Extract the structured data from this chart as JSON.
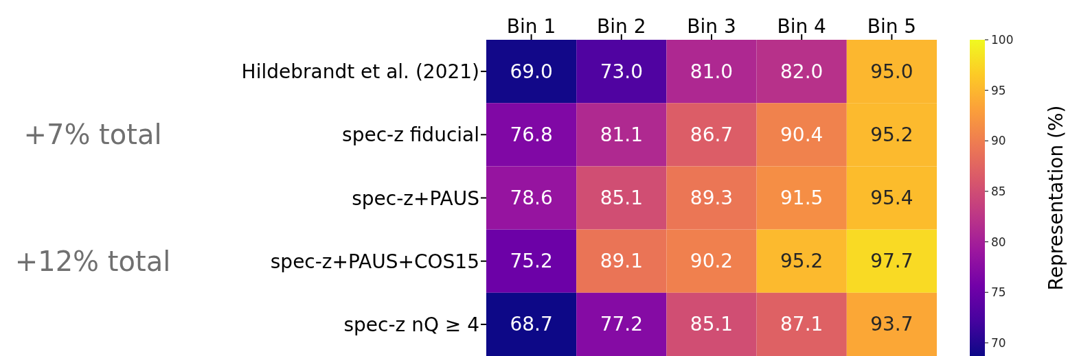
{
  "chart_data": {
    "type": "heatmap",
    "categories": [
      "Bin 1",
      "Bin 2",
      "Bin 3",
      "Bin 4",
      "Bin 5"
    ],
    "y_categories": [
      "Hildebrandt et al. (2021)",
      "spec-z fiducial",
      "spec-z+PAUS",
      "spec-z+PAUS+COS15",
      "spec-z nQ ≥ 4"
    ],
    "cells": [
      [
        69.0,
        73.0,
        81.0,
        82.0,
        95.0
      ],
      [
        76.8,
        81.1,
        86.7,
        90.4,
        95.2
      ],
      [
        78.6,
        85.1,
        89.3,
        91.5,
        95.4
      ],
      [
        75.2,
        89.1,
        90.2,
        95.2,
        97.7
      ],
      [
        68.7,
        77.2,
        85.1,
        87.1,
        93.7
      ]
    ],
    "cell_labels": [
      [
        "69.0",
        "73.0",
        "81.0",
        "82.0",
        "95.0"
      ],
      [
        "76.8",
        "81.1",
        "86.7",
        "90.4",
        "95.2"
      ],
      [
        "78.6",
        "85.1",
        "89.3",
        "91.5",
        "95.4"
      ],
      [
        "75.2",
        "89.1",
        "90.2",
        "95.2",
        "97.7"
      ],
      [
        "68.7",
        "77.2",
        "85.1",
        "87.1",
        "93.7"
      ]
    ],
    "clabel": "Representation (%)",
    "clim": [
      68.7,
      100
    ],
    "cticks": [
      70,
      75,
      80,
      85,
      90,
      95,
      100
    ],
    "annotations": [
      "+7% total",
      "+12% total"
    ]
  }
}
